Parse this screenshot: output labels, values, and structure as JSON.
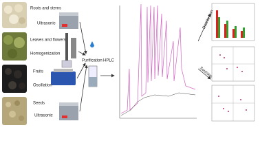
{
  "samples": [
    {
      "label": "Roots and stems",
      "method": "Ultrasonic"
    },
    {
      "label": "Leaves and flowers",
      "method": "Homogenization"
    },
    {
      "label": "Fruits",
      "method": "Oscillation"
    },
    {
      "label": "Seeds",
      "method": "Ultrasonic"
    }
  ],
  "steps": {
    "purification": "Purification",
    "hplc": "HPLC"
  },
  "outputs": {
    "distribution": "Distribution",
    "sources": "Sources"
  }
}
